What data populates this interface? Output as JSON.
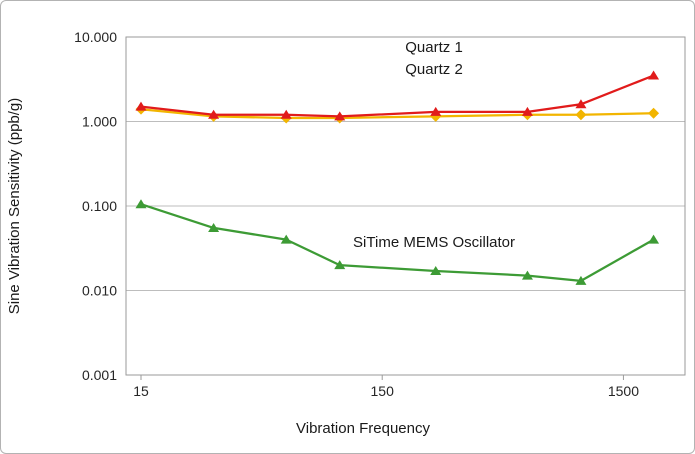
{
  "chart_data": {
    "type": "line",
    "x": [
      15,
      30,
      60,
      100,
      250,
      600,
      1000,
      2000
    ],
    "series": [
      {
        "name": "Quartz 1",
        "color": "#e11b1b",
        "marker": "triangle",
        "values": [
          1.5,
          1.2,
          1.2,
          1.15,
          1.3,
          1.3,
          1.6,
          3.5
        ]
      },
      {
        "name": "Quartz 2",
        "color": "#f2b500",
        "marker": "diamond",
        "values": [
          1.4,
          1.15,
          1.1,
          1.1,
          1.15,
          1.2,
          1.2,
          1.25
        ]
      },
      {
        "name": "SiTime MEMS Oscillator",
        "color": "#3d9b35",
        "marker": "triangle",
        "values": [
          0.105,
          0.055,
          0.04,
          0.02,
          0.017,
          0.015,
          0.013,
          0.04
        ]
      }
    ],
    "title": "",
    "xlabel": "Vibration Frequency",
    "ylabel": "Sine Vibration Sensitivity (ppb/g)",
    "x_scale": "log",
    "y_scale": "log",
    "xlim": [
      13,
      2700
    ],
    "ylim": [
      0.001,
      10
    ],
    "x_ticks": [
      {
        "value": 15,
        "label": "15"
      },
      {
        "value": 150,
        "label": "150"
      },
      {
        "value": 1500,
        "label": "1500"
      }
    ],
    "y_ticks": [
      {
        "value": 10,
        "label": "10.000"
      },
      {
        "value": 1,
        "label": "1.000"
      },
      {
        "value": 0.1,
        "label": "0.100"
      },
      {
        "value": 0.01,
        "label": "0.010"
      },
      {
        "value": 0.001,
        "label": "0.001"
      }
    ],
    "grid": "horizontal-major",
    "legend_position": "none",
    "annotations": [
      {
        "id": "annotation-quartz-1",
        "text": "Quartz 1",
        "x": 246,
        "y": 7.6
      },
      {
        "id": "annotation-quartz-2",
        "text": "Quartz 2",
        "x": 246,
        "y": 4.2
      },
      {
        "id": "annotation-mems",
        "text": "SiTime MEMS Oscillator",
        "x": 246,
        "y": 0.0375
      }
    ]
  }
}
